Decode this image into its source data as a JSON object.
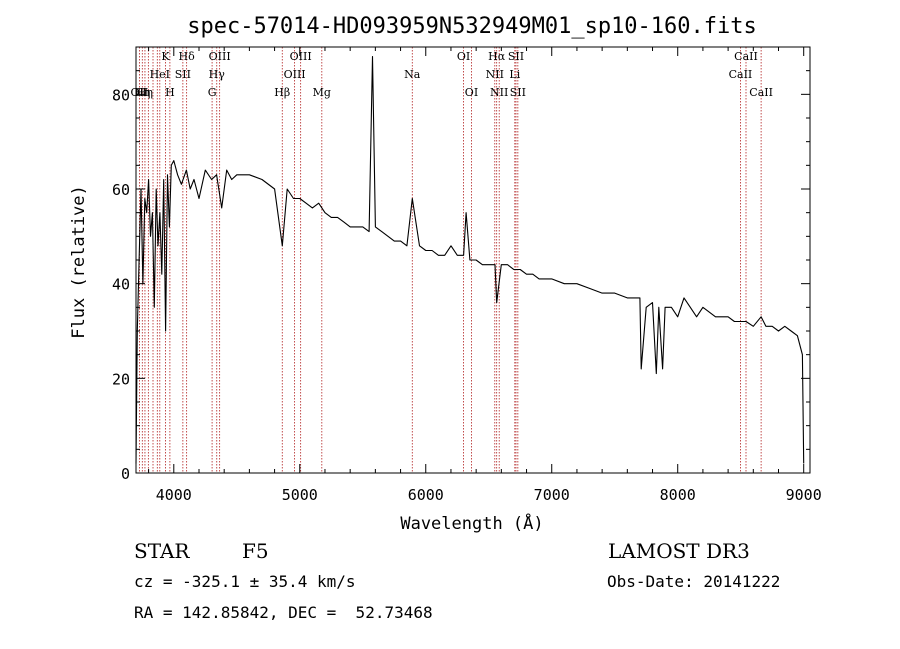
{
  "chart_data": {
    "type": "line",
    "title": "spec-57014-HD093959N532949M01_sp10-160.fits",
    "xlabel": "Wavelength (Å)",
    "ylabel": "Flux (relative)",
    "xlim": [
      3700,
      9050
    ],
    "ylim": [
      0,
      90
    ],
    "xticks": [
      4000,
      5000,
      6000,
      7000,
      8000,
      9000
    ],
    "yticks": [
      0,
      20,
      40,
      60,
      80
    ],
    "line_color": "#000000",
    "marker_color": "#b22222",
    "series": [
      {
        "name": "flux",
        "x": [
          3700,
          3710,
          3725,
          3740,
          3755,
          3770,
          3785,
          3800,
          3815,
          3830,
          3845,
          3860,
          3875,
          3890,
          3905,
          3920,
          3935,
          3950,
          3965,
          3980,
          4000,
          4030,
          4060,
          4100,
          4130,
          4160,
          4200,
          4250,
          4300,
          4340,
          4380,
          4420,
          4460,
          4500,
          4600,
          4700,
          4800,
          4861,
          4900,
          4950,
          5000,
          5050,
          5100,
          5150,
          5200,
          5250,
          5300,
          5350,
          5400,
          5450,
          5500,
          5550,
          5577,
          5600,
          5650,
          5700,
          5750,
          5800,
          5850,
          5893,
          5950,
          6000,
          6050,
          6100,
          6150,
          6200,
          6250,
          6300,
          6320,
          6350,
          6400,
          6450,
          6500,
          6550,
          6563,
          6600,
          6650,
          6700,
          6750,
          6800,
          6850,
          6900,
          6950,
          7000,
          7100,
          7200,
          7300,
          7400,
          7500,
          7600,
          7700,
          7710,
          7750,
          7800,
          7830,
          7850,
          7880,
          7900,
          7950,
          8000,
          8050,
          8100,
          8150,
          8200,
          8300,
          8400,
          8450,
          8500,
          8542,
          8600,
          8662,
          8700,
          8750,
          8800,
          8850,
          8900,
          8950,
          8990,
          9000
        ],
        "y": [
          2,
          30,
          45,
          60,
          40,
          58,
          55,
          62,
          50,
          55,
          35,
          60,
          48,
          55,
          42,
          62,
          30,
          63,
          52,
          65,
          66,
          63,
          61,
          64,
          60,
          62,
          58,
          64,
          62,
          63,
          56,
          64,
          62,
          63,
          63,
          62,
          60,
          48,
          60,
          58,
          58,
          57,
          56,
          57,
          55,
          54,
          54,
          53,
          52,
          52,
          52,
          51,
          88,
          52,
          51,
          50,
          49,
          49,
          48,
          58,
          48,
          47,
          47,
          46,
          46,
          48,
          46,
          46,
          55,
          45,
          45,
          44,
          44,
          44,
          36,
          44,
          44,
          43,
          43,
          42,
          42,
          41,
          41,
          41,
          40,
          40,
          39,
          38,
          38,
          37,
          37,
          22,
          35,
          36,
          21,
          35,
          22,
          35,
          35,
          33,
          37,
          35,
          33,
          35,
          33,
          33,
          32,
          32,
          32,
          31,
          33,
          31,
          31,
          30,
          31,
          30,
          29,
          25,
          2
        ]
      }
    ],
    "markers": [
      {
        "wavelength": 3727,
        "label": "OII",
        "row": 2
      },
      {
        "wavelength": 3750,
        "label": "Hη",
        "row": 2
      },
      {
        "wavelength": 3771,
        "label": "Hη",
        "row": 2
      },
      {
        "wavelength": 3798,
        "label": "",
        "row": 0
      },
      {
        "wavelength": 3835,
        "label": "",
        "row": 0
      },
      {
        "wavelength": 3869,
        "label": "",
        "row": 0
      },
      {
        "wavelength": 3889,
        "label": "HeI",
        "row": 1
      },
      {
        "wavelength": 3934,
        "label": "K",
        "row": 0
      },
      {
        "wavelength": 3969,
        "label": "H",
        "row": 2
      },
      {
        "wavelength": 4072,
        "label": "SII",
        "row": 1
      },
      {
        "wavelength": 4102,
        "label": "Hδ",
        "row": 0
      },
      {
        "wavelength": 4304,
        "label": "G",
        "row": 2
      },
      {
        "wavelength": 4341,
        "label": "Hγ",
        "row": 1
      },
      {
        "wavelength": 4364,
        "label": "OIII",
        "row": 0
      },
      {
        "wavelength": 4861,
        "label": "Hβ",
        "row": 2
      },
      {
        "wavelength": 4959,
        "label": "OIII",
        "row": 1
      },
      {
        "wavelength": 5007,
        "label": "OIII",
        "row": 0
      },
      {
        "wavelength": 5175,
        "label": "Mg",
        "row": 2
      },
      {
        "wavelength": 5893,
        "label": "Na",
        "row": 1
      },
      {
        "wavelength": 6300,
        "label": "OI",
        "row": 0
      },
      {
        "wavelength": 6363,
        "label": "OI",
        "row": 2
      },
      {
        "wavelength": 6548,
        "label": "NII",
        "row": 1
      },
      {
        "wavelength": 6563,
        "label": "Hα",
        "row": 0
      },
      {
        "wavelength": 6583,
        "label": "NII",
        "row": 2
      },
      {
        "wavelength": 6707,
        "label": "Li",
        "row": 1
      },
      {
        "wavelength": 6716,
        "label": "SII",
        "row": 0
      },
      {
        "wavelength": 6731,
        "label": "SII",
        "row": 2
      },
      {
        "wavelength": 8498,
        "label": "CaII",
        "row": 1
      },
      {
        "wavelength": 8542,
        "label": "CaII",
        "row": 0
      },
      {
        "wavelength": 8662,
        "label": "CaII",
        "row": 2
      }
    ]
  },
  "info": {
    "object_class": "STAR",
    "subclass": "F5",
    "survey": "LAMOST DR3",
    "velocity": "cz = -325.1 ± 35.4 km/s",
    "obs_date": "Obs-Date: 20141222",
    "coords": "RA = 142.85842, DEC =  52.73468"
  }
}
